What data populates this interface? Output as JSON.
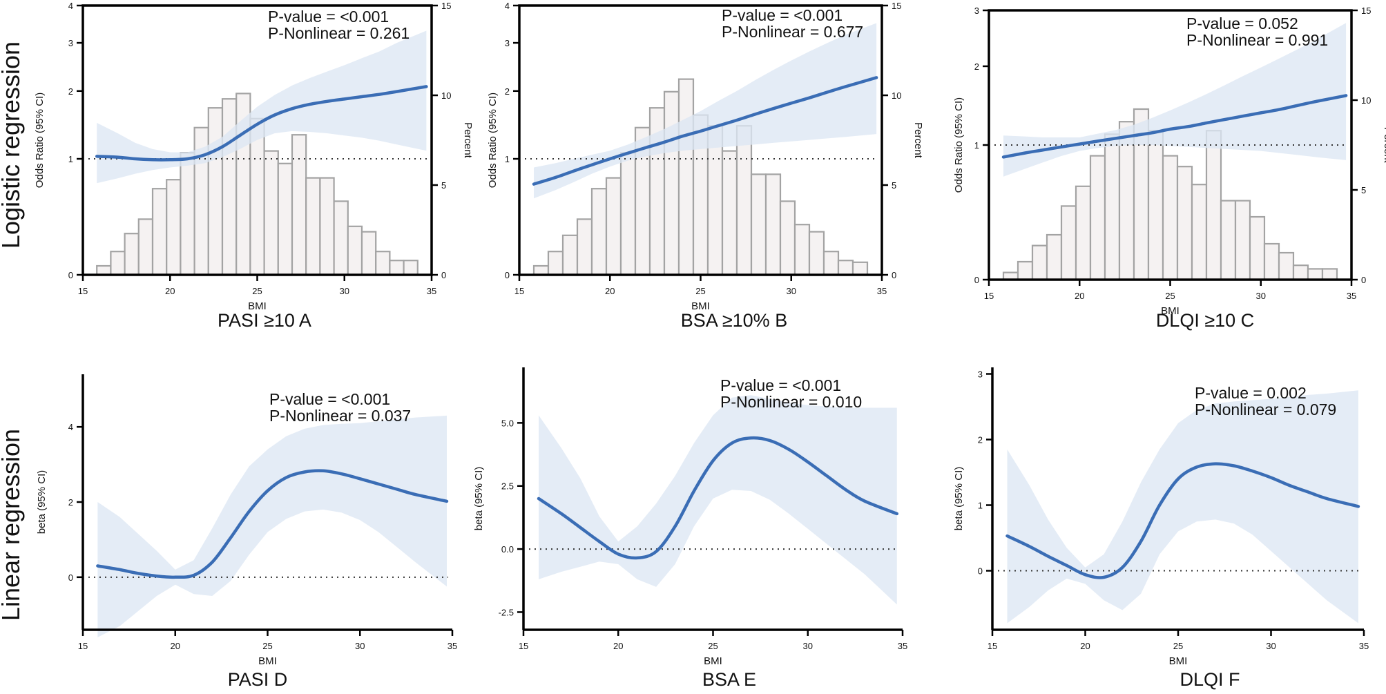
{
  "figure": {
    "row_labels": [
      "Logistic regression",
      "Linear regression"
    ],
    "colors": {
      "curve": "#3a6db5",
      "ci_band": "#dde7f4",
      "hist_fill": "#f5f2f2",
      "hist_stroke": "#a3a3a3",
      "axis": "#000000",
      "reference_line": "#333333"
    }
  },
  "chart_data": [
    {
      "panel": "A",
      "type": "line",
      "model": "logistic",
      "caption": "PASI ≥10 A",
      "xlabel": "BMI",
      "ylabel": "Odds Ratio (95% CI)",
      "y2label": "Percent",
      "xlim": [
        15,
        35
      ],
      "xticks": [
        15,
        20,
        25,
        30,
        35
      ],
      "ylim": [
        0,
        4
      ],
      "yticks": [
        0,
        1,
        2,
        3,
        4
      ],
      "y_scale": "log1p",
      "y2lim": [
        0,
        15
      ],
      "y2ticks": [
        0,
        5,
        10,
        15
      ],
      "reference_y": 1,
      "p_value": "P-value = <0.001",
      "p_nonlinear": "P-Nonlinear = 0.261",
      "curve": {
        "x": [
          15.8,
          17,
          18,
          19,
          20,
          21,
          22,
          23,
          24,
          25,
          26,
          27,
          28,
          29,
          30,
          31,
          32,
          33,
          34.7
        ],
        "y": [
          1.03,
          1.02,
          1.0,
          0.99,
          0.99,
          1.0,
          1.05,
          1.15,
          1.3,
          1.46,
          1.6,
          1.7,
          1.77,
          1.82,
          1.86,
          1.9,
          1.94,
          1.99,
          2.08
        ],
        "lower": [
          0.73,
          0.78,
          0.83,
          0.87,
          0.9,
          0.92,
          0.95,
          1.02,
          1.12,
          1.24,
          1.33,
          1.36,
          1.35,
          1.33,
          1.3,
          1.27,
          1.23,
          1.18,
          1.1
        ],
        "upper": [
          1.48,
          1.33,
          1.2,
          1.12,
          1.08,
          1.08,
          1.15,
          1.28,
          1.5,
          1.73,
          1.93,
          2.1,
          2.24,
          2.37,
          2.5,
          2.65,
          2.8,
          3.0,
          3.3
        ]
      },
      "histogram": {
        "bin_starts": [
          15.8,
          16.6,
          17.4,
          18.2,
          19,
          19.8,
          20.6,
          21.4,
          22.2,
          23,
          23.8,
          24.6,
          25.4,
          26.2,
          27,
          27.8,
          28.6,
          29.4,
          30.2,
          31,
          31.8,
          32.6,
          33.4
        ],
        "bin_width": 0.8,
        "percent": [
          0.5,
          1.3,
          2.3,
          3.1,
          4.8,
          5.3,
          6.8,
          8.2,
          9.3,
          9.8,
          10.1,
          8.7,
          6.9,
          6.2,
          7.8,
          5.4,
          5.4,
          4.1,
          2.7,
          2.4,
          1.3,
          0.8,
          0.8
        ]
      }
    },
    {
      "panel": "B",
      "type": "line",
      "model": "logistic",
      "caption": "BSA ≥10% B",
      "xlabel": "BMI",
      "ylabel": "Odds Ratio (95% CI)",
      "y2label": "Percent",
      "xlim": [
        15,
        35
      ],
      "xticks": [
        15,
        20,
        25,
        30,
        35
      ],
      "ylim": [
        0,
        4
      ],
      "yticks": [
        0,
        1,
        2,
        3,
        4
      ],
      "y_scale": "log1p",
      "y2lim": [
        0,
        15
      ],
      "y2ticks": [
        0,
        5,
        10,
        15
      ],
      "reference_y": 1,
      "p_value": "P-value = <0.001",
      "p_nonlinear": "P-Nonlinear = 0.677",
      "curve": {
        "x": [
          15.8,
          17,
          18,
          19,
          20,
          21,
          22,
          23,
          24,
          25,
          26,
          27,
          28,
          29,
          30,
          31,
          32,
          33,
          34.7
        ],
        "y": [
          0.72,
          0.79,
          0.86,
          0.93,
          1.0,
          1.07,
          1.14,
          1.21,
          1.29,
          1.36,
          1.44,
          1.52,
          1.61,
          1.7,
          1.79,
          1.88,
          1.98,
          2.08,
          2.25
        ],
        "lower": [
          0.58,
          0.66,
          0.74,
          0.83,
          0.91,
          0.98,
          1.03,
          1.07,
          1.1,
          1.12,
          1.14,
          1.16,
          1.18,
          1.2,
          1.22,
          1.24,
          1.26,
          1.28,
          1.32
        ],
        "upper": [
          0.9,
          0.95,
          1.0,
          1.05,
          1.1,
          1.18,
          1.28,
          1.39,
          1.52,
          1.66,
          1.83,
          2.0,
          2.2,
          2.4,
          2.6,
          2.8,
          3.0,
          3.2,
          3.5
        ]
      },
      "histogram": {
        "bin_starts": [
          15.8,
          16.6,
          17.4,
          18.2,
          19,
          19.8,
          20.6,
          21.4,
          22.2,
          23,
          23.8,
          24.6,
          25.4,
          26.2,
          27,
          27.8,
          28.6,
          29.4,
          30.2,
          31,
          31.8,
          32.6,
          33.4
        ],
        "bin_width": 0.8,
        "percent": [
          0.5,
          1.3,
          2.2,
          3.1,
          4.8,
          5.4,
          6.8,
          8.2,
          9.3,
          10.2,
          10.9,
          8.9,
          8.3,
          6.9,
          8.3,
          5.6,
          5.6,
          4.1,
          2.8,
          2.4,
          1.3,
          0.8,
          0.7
        ]
      }
    },
    {
      "panel": "C",
      "type": "line",
      "model": "logistic",
      "caption": "DLQI ≥10 C",
      "xlabel": "BMI",
      "ylabel": "Odds Ratio (95% CI)",
      "y2label": "Percent",
      "xlim": [
        15,
        35
      ],
      "xticks": [
        15,
        20,
        25,
        30,
        35
      ],
      "ylim": [
        0,
        3
      ],
      "yticks": [
        0,
        1,
        2,
        3
      ],
      "y_scale": "log1p",
      "y2lim": [
        0,
        15
      ],
      "y2ticks": [
        0,
        5,
        10,
        15
      ],
      "reference_y": 1,
      "p_value": "P-value = 0.052",
      "p_nonlinear": "P-Nonlinear = 0.991",
      "curve": {
        "x": [
          15.8,
          17,
          18,
          19,
          20,
          21,
          22,
          23,
          24,
          25,
          26,
          27,
          28,
          29,
          30,
          31,
          32,
          33,
          34.7
        ],
        "y": [
          0.88,
          0.92,
          0.95,
          0.98,
          1.01,
          1.04,
          1.07,
          1.1,
          1.13,
          1.17,
          1.2,
          1.24,
          1.28,
          1.32,
          1.36,
          1.4,
          1.45,
          1.5,
          1.58
        ],
        "lower": [
          0.7,
          0.77,
          0.83,
          0.89,
          0.94,
          0.97,
          0.99,
          1.0,
          1.0,
          0.99,
          0.98,
          0.97,
          0.96,
          0.95,
          0.94,
          0.92,
          0.9,
          0.88,
          0.85
        ],
        "upper": [
          1.1,
          1.09,
          1.08,
          1.08,
          1.08,
          1.12,
          1.16,
          1.22,
          1.3,
          1.39,
          1.49,
          1.6,
          1.72,
          1.85,
          1.98,
          2.12,
          2.27,
          2.43,
          2.75
        ]
      },
      "histogram": {
        "bin_starts": [
          15.8,
          16.6,
          17.4,
          18.2,
          19,
          19.8,
          20.6,
          21.4,
          22.2,
          23,
          23.8,
          24.6,
          25.4,
          26.2,
          27,
          27.8,
          28.6,
          29.4,
          30.2,
          31,
          31.8,
          32.6,
          33.4
        ],
        "bin_width": 0.8,
        "percent": [
          0.4,
          1.0,
          1.9,
          2.5,
          4.1,
          5.2,
          6.9,
          8.1,
          8.8,
          9.5,
          8.3,
          6.9,
          6.3,
          5.3,
          8.3,
          4.4,
          4.4,
          3.5,
          2.0,
          1.5,
          0.8,
          0.6,
          0.6
        ]
      }
    },
    {
      "panel": "D",
      "type": "line",
      "model": "linear",
      "caption": "PASI D",
      "xlabel": "BMI",
      "ylabel": "beta (95% CI)",
      "xlim": [
        15,
        35
      ],
      "xticks": [
        15,
        20,
        25,
        30,
        35
      ],
      "ylim": [
        -1.4,
        5.4
      ],
      "yticks": [
        0,
        2,
        4
      ],
      "reference_y": 0,
      "p_value": "P-value = <0.001",
      "p_nonlinear": "P-Nonlinear = 0.037",
      "curve": {
        "x": [
          15.8,
          17,
          18,
          19,
          20,
          21,
          22,
          23,
          24,
          25,
          26,
          27,
          28,
          29,
          30,
          31,
          32,
          33,
          34.7
        ],
        "y": [
          0.3,
          0.2,
          0.1,
          0.03,
          0.0,
          0.05,
          0.4,
          1.05,
          1.75,
          2.3,
          2.65,
          2.8,
          2.83,
          2.75,
          2.62,
          2.48,
          2.34,
          2.2,
          2.02
        ],
        "lower": [
          -1.6,
          -1.3,
          -0.9,
          -0.5,
          -0.2,
          -0.45,
          -0.5,
          -0.1,
          0.6,
          1.2,
          1.55,
          1.75,
          1.8,
          1.72,
          1.52,
          1.2,
          0.8,
          0.4,
          -0.25
        ],
        "upper": [
          2.0,
          1.6,
          1.15,
          0.7,
          0.2,
          0.45,
          1.3,
          2.2,
          2.95,
          3.4,
          3.75,
          3.95,
          4.05,
          4.08,
          4.1,
          4.15,
          4.2,
          4.25,
          4.3
        ]
      }
    },
    {
      "panel": "E",
      "type": "line",
      "model": "linear",
      "caption": "BSA E",
      "xlabel": "BMI",
      "ylabel": "beta (95% CI)",
      "xlim": [
        15,
        35
      ],
      "xticks": [
        15,
        20,
        25,
        30,
        35
      ],
      "ylim": [
        -3.2,
        7.2
      ],
      "yticks": [
        -2.5,
        0.0,
        2.5,
        5.0
      ],
      "ytick_labels": [
        "-2.5",
        "0.0",
        "2.5",
        "5.0"
      ],
      "reference_y": 0,
      "p_value": "P-value = <0.001",
      "p_nonlinear": "P-Nonlinear = 0.010",
      "curve": {
        "x": [
          15.8,
          17,
          18,
          19,
          20,
          21,
          22,
          23,
          24,
          25,
          26,
          27,
          28,
          29,
          30,
          31,
          32,
          33,
          34.7
        ],
        "y": [
          2.0,
          1.4,
          0.85,
          0.3,
          -0.2,
          -0.35,
          -0.1,
          0.9,
          2.3,
          3.5,
          4.2,
          4.4,
          4.3,
          3.95,
          3.45,
          2.9,
          2.35,
          1.9,
          1.4
        ],
        "lower": [
          -1.2,
          -0.9,
          -0.7,
          -0.5,
          -0.6,
          -1.2,
          -1.5,
          -0.6,
          0.9,
          2.0,
          2.35,
          2.3,
          1.95,
          1.4,
          0.8,
          0.2,
          -0.4,
          -1.0,
          -2.2
        ],
        "upper": [
          5.3,
          4.0,
          2.8,
          1.3,
          0.3,
          0.9,
          1.8,
          2.9,
          4.2,
          5.3,
          6.0,
          6.1,
          5.95,
          5.8,
          5.7,
          5.65,
          5.6,
          5.6,
          5.6
        ]
      }
    },
    {
      "panel": "F",
      "type": "line",
      "model": "linear",
      "caption": "DLQI F",
      "xlabel": "BMI",
      "ylabel": "beta (95% CI)",
      "xlim": [
        15,
        35
      ],
      "xticks": [
        15,
        20,
        25,
        30,
        35
      ],
      "ylim": [
        -0.9,
        3.1
      ],
      "yticks": [
        0,
        1,
        2,
        3
      ],
      "reference_y": 0,
      "p_value": "P-value = 0.002",
      "p_nonlinear": "P-Nonlinear = 0.079",
      "curve": {
        "x": [
          15.8,
          17,
          18,
          19,
          20,
          21,
          22,
          23,
          24,
          25,
          26,
          27,
          28,
          29,
          30,
          31,
          32,
          33,
          34.7
        ],
        "y": [
          0.53,
          0.37,
          0.22,
          0.08,
          -0.06,
          -0.1,
          0.05,
          0.45,
          1.0,
          1.4,
          1.58,
          1.63,
          1.6,
          1.52,
          1.42,
          1.3,
          1.2,
          1.1,
          0.98
        ],
        "lower": [
          -0.8,
          -0.55,
          -0.3,
          -0.12,
          -0.2,
          -0.45,
          -0.6,
          -0.35,
          0.25,
          0.6,
          0.75,
          0.78,
          0.72,
          0.55,
          0.3,
          0.05,
          -0.2,
          -0.45,
          -0.8
        ],
        "upper": [
          1.85,
          1.3,
          0.78,
          0.35,
          0.05,
          0.25,
          0.75,
          1.35,
          1.85,
          2.25,
          2.45,
          2.55,
          2.58,
          2.6,
          2.62,
          2.65,
          2.68,
          2.7,
          2.75
        ]
      }
    }
  ]
}
